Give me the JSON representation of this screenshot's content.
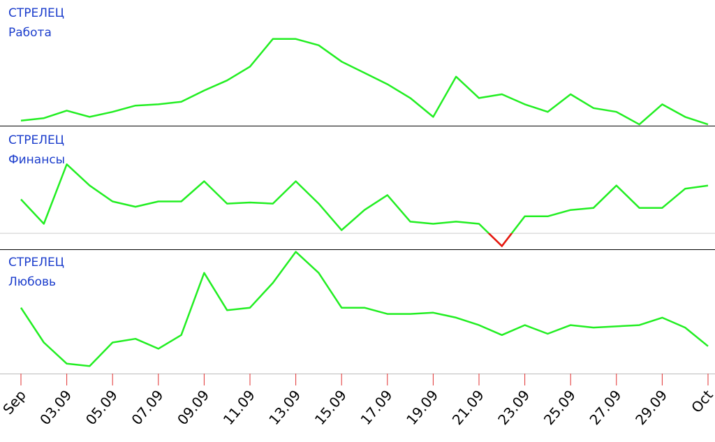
{
  "chart_data": [
    {
      "type": "line",
      "title": "СТРЕЛЕЦ",
      "subtitle": "Работа",
      "color": "#22ee22",
      "negative_color": "#ee1111",
      "ylim": [
        0,
        100
      ],
      "values": [
        4,
        6,
        12,
        7,
        11,
        16,
        17,
        19,
        28,
        36,
        47,
        69,
        69,
        64,
        51,
        42,
        33,
        22,
        7,
        39,
        22,
        25,
        17,
        11,
        25,
        14,
        11,
        1,
        17,
        7,
        1
      ]
    },
    {
      "type": "line",
      "title": "СТРЕЛЕЦ",
      "subtitle": "Финансы",
      "color": "#22ee22",
      "negative_color": "#ee1111",
      "ylim": [
        -15,
        100
      ],
      "values": [
        32,
        9,
        65,
        45,
        30,
        25,
        30,
        30,
        49,
        28,
        29,
        28,
        49,
        28,
        3,
        22,
        36,
        11,
        9,
        11,
        9,
        -12,
        16,
        16,
        22,
        24,
        45,
        24,
        24,
        42,
        45
      ]
    },
    {
      "type": "line",
      "title": "СТРЕЛЕЦ",
      "subtitle": "Любовь",
      "color": "#22ee22",
      "negative_color": "#ee1111",
      "ylim": [
        0,
        100
      ],
      "values": [
        53,
        25,
        8,
        6,
        25,
        28,
        20,
        31,
        81,
        51,
        53,
        73,
        98,
        81,
        53,
        53,
        48,
        48,
        49,
        45,
        39,
        31,
        39,
        32,
        39,
        37,
        38,
        39,
        45,
        37,
        22
      ],
      "categories": [
        "Sep",
        null,
        "03.09",
        null,
        "05.09",
        null,
        "07.09",
        null,
        "09.09",
        null,
        "11.09",
        null,
        "13.09",
        null,
        "15.09",
        null,
        "17.09",
        null,
        "19.09",
        null,
        "21.09",
        null,
        "23.09",
        null,
        "25.09",
        null,
        "27.09",
        null,
        "29.09",
        null,
        "Oct"
      ]
    }
  ]
}
